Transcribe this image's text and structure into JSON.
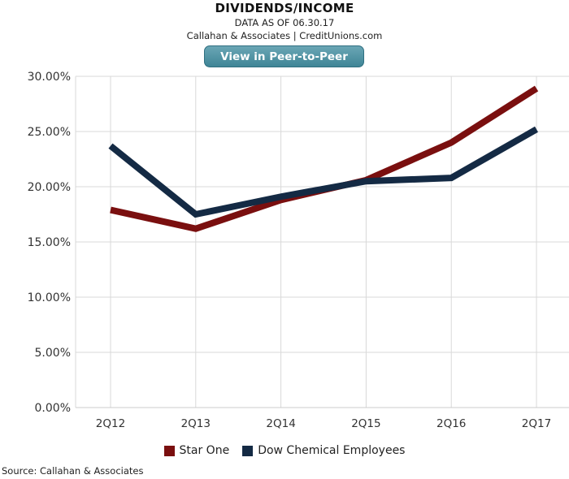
{
  "header": {
    "title": "DIVIDENDS/INCOME",
    "data_as_of": "DATA AS OF 06.30.17",
    "attribution": "Callahan & Associates | CreditUnions.com",
    "peer_button_label": "View in Peer-to-Peer"
  },
  "footer": {
    "source": "Source: Callahan & Associates"
  },
  "colors": {
    "star_one": "#7a0f0f",
    "dow_chemical": "#142a44",
    "grid": "#d9d9d9",
    "button": "#4f93a3"
  },
  "chart_data": {
    "type": "line",
    "title": "DIVIDENDS/INCOME",
    "categories": [
      "2Q12",
      "2Q13",
      "2Q14",
      "2Q15",
      "2Q16",
      "2Q17"
    ],
    "ylim": [
      0,
      30
    ],
    "yticks": [
      0,
      5,
      10,
      15,
      20,
      25,
      30
    ],
    "ytick_labels": [
      "0.00%",
      "5.00%",
      "10.00%",
      "15.00%",
      "20.00%",
      "25.00%",
      "30.00%"
    ],
    "grid": true,
    "legend_position": "bottom",
    "series": [
      {
        "name": "Star One",
        "values": [
          17.9,
          16.2,
          18.8,
          20.6,
          24.0,
          28.9
        ]
      },
      {
        "name": "Dow Chemical Employees",
        "values": [
          23.7,
          17.5,
          19.1,
          20.5,
          20.8,
          25.2
        ]
      }
    ]
  }
}
